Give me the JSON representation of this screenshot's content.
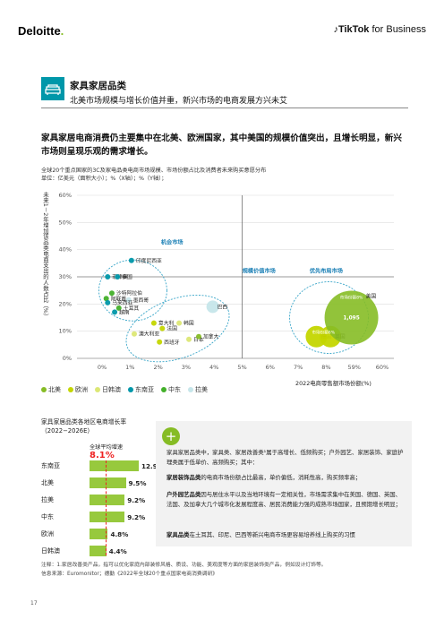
{
  "header": {
    "deloitte": "Deloitte",
    "tiktok_bold": "TikTok",
    "tiktok_rest": " for Business"
  },
  "section": {
    "title": "家具家居品类",
    "subtitle": "北美市场规模与增长价值并重，新兴市场的电商发展方兴未艾"
  },
  "lead": "家具家居电商消费仍主要集中在北美、欧洲国家，其中美国的规模价值突出，且增长明显，新兴市场则呈现乐观的需求增长。",
  "caption": {
    "line1": "全球20个重点国家的3C及家电品类电商市场规模、市场份额占比及消费者未来购买意愿分布",
    "line2": "单位：亿美元（面积大小）；%（X轴）；%（Y轴）；"
  },
  "chart_data": [
    {
      "type": "scatter",
      "ylabel": "未来1－2年增加该品类电商支出的人数占比（%）",
      "xlabel": "2022电商零售额市场份额(%)",
      "x_ticks": [
        "0%",
        "1%",
        "2%",
        "3%",
        "4%",
        "5%",
        "6%",
        "7%",
        "8%",
        "59%",
        "60%"
      ],
      "y_ticks": [
        "0%",
        "10%",
        "20%",
        "30%",
        "40%",
        "50%",
        "60%"
      ],
      "ylim": [
        0,
        60
      ],
      "zones": [
        "机会市场",
        "规模价值市场",
        "优先布局市场"
      ],
      "regions": [
        {
          "name": "北美",
          "color": "#86bc25"
        },
        {
          "name": "欧洲",
          "color": "#c4d600"
        },
        {
          "name": "日韩澳",
          "color": "#dce775"
        },
        {
          "name": "东南亚",
          "color": "#0097a9"
        },
        {
          "name": "中东",
          "color": "#43b02a"
        },
        {
          "name": "拉美",
          "color": "#c6e6ea"
        }
      ],
      "points": [
        {
          "label": "印度尼西亚",
          "x": 1.05,
          "y": 36,
          "region": "东南亚"
        },
        {
          "label": "菲律宾",
          "x": 0.2,
          "y": 30,
          "region": "东南亚"
        },
        {
          "label": "泰国",
          "x": 0.55,
          "y": 30,
          "region": "东南亚"
        },
        {
          "label": "沙特阿拉伯",
          "x": 0.35,
          "y": 24,
          "region": "中东"
        },
        {
          "label": "阿联酋",
          "x": 0.15,
          "y": 22,
          "region": "中东"
        },
        {
          "label": "墨西哥",
          "x": 0.95,
          "y": 21.5,
          "region": "拉美"
        },
        {
          "label": "马来西亚",
          "x": 0.2,
          "y": 20.5,
          "region": "东南亚"
        },
        {
          "label": "土耳其",
          "x": 0.6,
          "y": 18.5,
          "region": "中东"
        },
        {
          "label": "越南",
          "x": 0.45,
          "y": 17,
          "region": "东南亚"
        },
        {
          "label": "意大利",
          "x": 1.85,
          "y": 13,
          "region": "欧洲"
        },
        {
          "label": "韩国",
          "x": 2.75,
          "y": 13,
          "region": "日韩澳"
        },
        {
          "label": "法国",
          "x": 2.15,
          "y": 11,
          "region": "欧洲"
        },
        {
          "label": "澳大利亚",
          "x": 1.15,
          "y": 9,
          "region": "日韩澳"
        },
        {
          "label": "西班牙",
          "x": 2.05,
          "y": 6,
          "region": "欧洲"
        },
        {
          "label": "日本",
          "x": 3.1,
          "y": 7,
          "region": "日韩澳"
        },
        {
          "label": "加拿大",
          "x": 3.45,
          "y": 8,
          "region": "北美"
        },
        {
          "label": "巴西",
          "x": 3.95,
          "y": 19,
          "region": "拉美"
        },
        {
          "label": "德国",
          "x": 7.65,
          "y": 8,
          "region": "欧洲"
        },
        {
          "label": "英国",
          "x": 8.15,
          "y": 8,
          "region": "欧洲"
        },
        {
          "label": "美国",
          "x": 8.9,
          "y": 15,
          "region": "北美",
          "value": "1,095"
        }
      ],
      "inline_labels": [
        "市场份额8%",
        "市场份额6%"
      ]
    },
    {
      "type": "bar",
      "title": "家具家居品类各地区电商增长率（2022−2026E）",
      "header": "全球平均增速",
      "average": "8.1%",
      "categories": [
        "东南亚",
        "北美",
        "拉美",
        "中东",
        "欧洲",
        "日韩澳"
      ],
      "values": [
        12.9,
        9.5,
        9.2,
        9.2,
        4.8,
        4.4
      ],
      "value_labels": [
        "12.9%",
        "9.5%",
        "9.2%",
        "9.2%",
        "4.8%",
        "4.4%"
      ]
    }
  ],
  "insights": {
    "p1": "家具家居品类中，家具类、家居改善类¹属于高增长、低频购买；户外园艺、家居装饰、家庭护理类属于低单价、高频购买；其中：",
    "p2_bold": "家居装饰品类",
    "p2": "的电商市场份额占比最高，单价偏低，消耗性高，购买频率高；",
    "p3_bold": "户外园艺品类",
    "p3": "因与居住水平以及当地环境有一定相关性，市场需求集中在美国、德国、英国、法国、及加拿大几个城市化发展程度高、居民消费能力强的成熟市场国家，且预期增长明显；",
    "p4_bold": "家具品类",
    "p4": "在土耳其、印尼、巴西等新兴电商市场更容易培养线上购买的习惯"
  },
  "notes": {
    "n1": "注释：1.家居改善类产品，指可以优化家庭内部装修风格、质设、功能、美观度等方面的家居装饰类产品，例如设计灯饰等。",
    "n2": "信息来源：Euromonitor；德勤《2022年全球20个重点国家电商消费调研》"
  },
  "page": "17"
}
